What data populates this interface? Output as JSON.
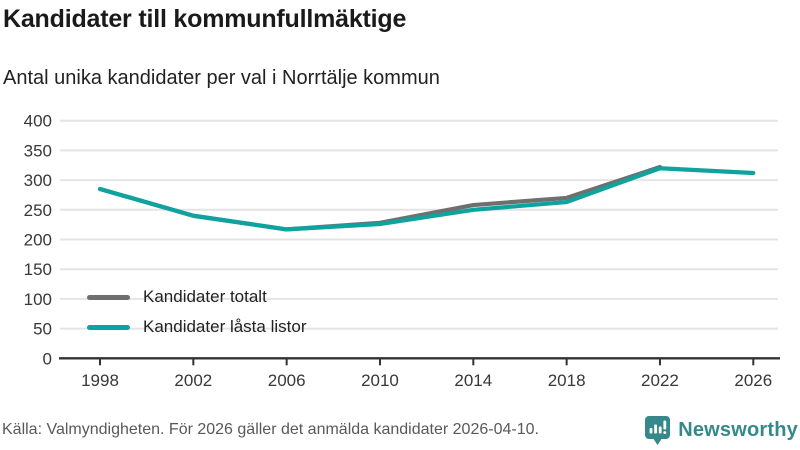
{
  "header": {
    "title": "Kandidater till kommunfullmäktige",
    "subtitle": "Antal unika kandidater per val i Norrtälje kommun"
  },
  "chart_data": {
    "type": "line",
    "title": "Kandidater till kommunfullmäktige",
    "subtitle": "Antal unika kandidater per val i Norrtälje kommun",
    "x": [
      1998,
      2002,
      2006,
      2010,
      2014,
      2018,
      2022,
      2026
    ],
    "series": [
      {
        "name": "Kandidater totalt",
        "color": "#6f6f6f",
        "values": [
          285,
          240,
          217,
          228,
          258,
          270,
          322,
          null
        ]
      },
      {
        "name": "Kandidater låsta listor",
        "color": "#0fa3a0",
        "values": [
          285,
          240,
          217,
          226,
          250,
          263,
          320,
          312
        ]
      }
    ],
    "ylim": [
      0,
      400
    ],
    "ytick_step": 50,
    "xlabel": "",
    "ylabel": "",
    "grid": "horizontal",
    "legend_position": "inside-bottom-left"
  },
  "footer": {
    "source": "Källa: Valmyndigheten. För 2026 gäller det anmälda kandidater 2026-04-10.",
    "brand": "Newsworthy"
  },
  "colors": {
    "series_total": "#6f6f6f",
    "series_locked": "#0fa3a0",
    "brand_teal": "#35898a",
    "grid": "#e4e4e4",
    "axis": "#333333",
    "title_text": "#1a1a1a",
    "muted_text": "#595959"
  }
}
